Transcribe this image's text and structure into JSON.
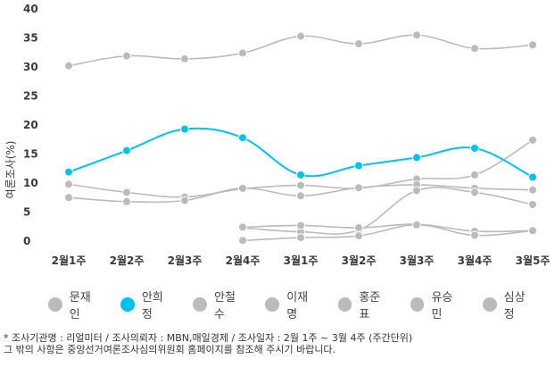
{
  "chart_data": {
    "type": "line",
    "ylabel": "여론조사(%)",
    "xlabel": "",
    "ylim": [
      0,
      40
    ],
    "yticks": [
      0,
      5,
      10,
      15,
      20,
      25,
      30,
      35,
      40
    ],
    "categories": [
      "2월1주",
      "2월2주",
      "2월3주",
      "2월4주",
      "3월1주",
      "3월2주",
      "3월3주",
      "3월4주",
      "3월5주"
    ],
    "grid": false,
    "legend_position": "bottom",
    "series": [
      {
        "name": "문재인",
        "color": "#bbbbbb",
        "values": [
          30.2,
          31.9,
          31.4,
          32.4,
          35.3,
          34.0,
          35.5,
          33.2,
          33.8
        ]
      },
      {
        "name": "안희정",
        "color": "#00c0f0",
        "values": [
          11.9,
          15.6,
          19.3,
          17.8,
          11.4,
          13.0,
          14.4,
          16.0,
          11.0
        ]
      },
      {
        "name": "안철수",
        "color": "#bbbbbb",
        "values": [
          9.8,
          8.4,
          7.6,
          9.0,
          9.6,
          9.1,
          10.7,
          11.4,
          17.4
        ]
      },
      {
        "name": "이재명",
        "color": "#bbbbbb",
        "values": [
          7.5,
          6.8,
          7.0,
          9.1,
          7.8,
          9.2,
          9.7,
          9.1,
          8.8
        ]
      },
      {
        "name": "홍준표",
        "color": "#bbbbbb",
        "values": [
          null,
          null,
          null,
          2.3,
          1.6,
          1.9,
          8.7,
          8.4,
          6.3
        ]
      },
      {
        "name": "유승민",
        "color": "#bbbbbb",
        "values": [
          null,
          null,
          null,
          2.4,
          2.7,
          2.3,
          2.9,
          1.7,
          1.8
        ]
      },
      {
        "name": "심상정",
        "color": "#bbbbbb",
        "values": [
          null,
          null,
          null,
          0.1,
          0.6,
          0.9,
          2.8,
          1.0,
          1.8
        ]
      }
    ]
  },
  "notes": {
    "line1": "* 조사기관명 : 리얼미터 / 조사의뢰자 : MBN,매일경제 / 조사일자 : 2월 1주 ~ 3월 4주 (주간단위)",
    "line2": "  그 밖의 사항은 중앙선거여론조사심의위원회 홈페이지를 참조해 주시기 바랍니다."
  }
}
